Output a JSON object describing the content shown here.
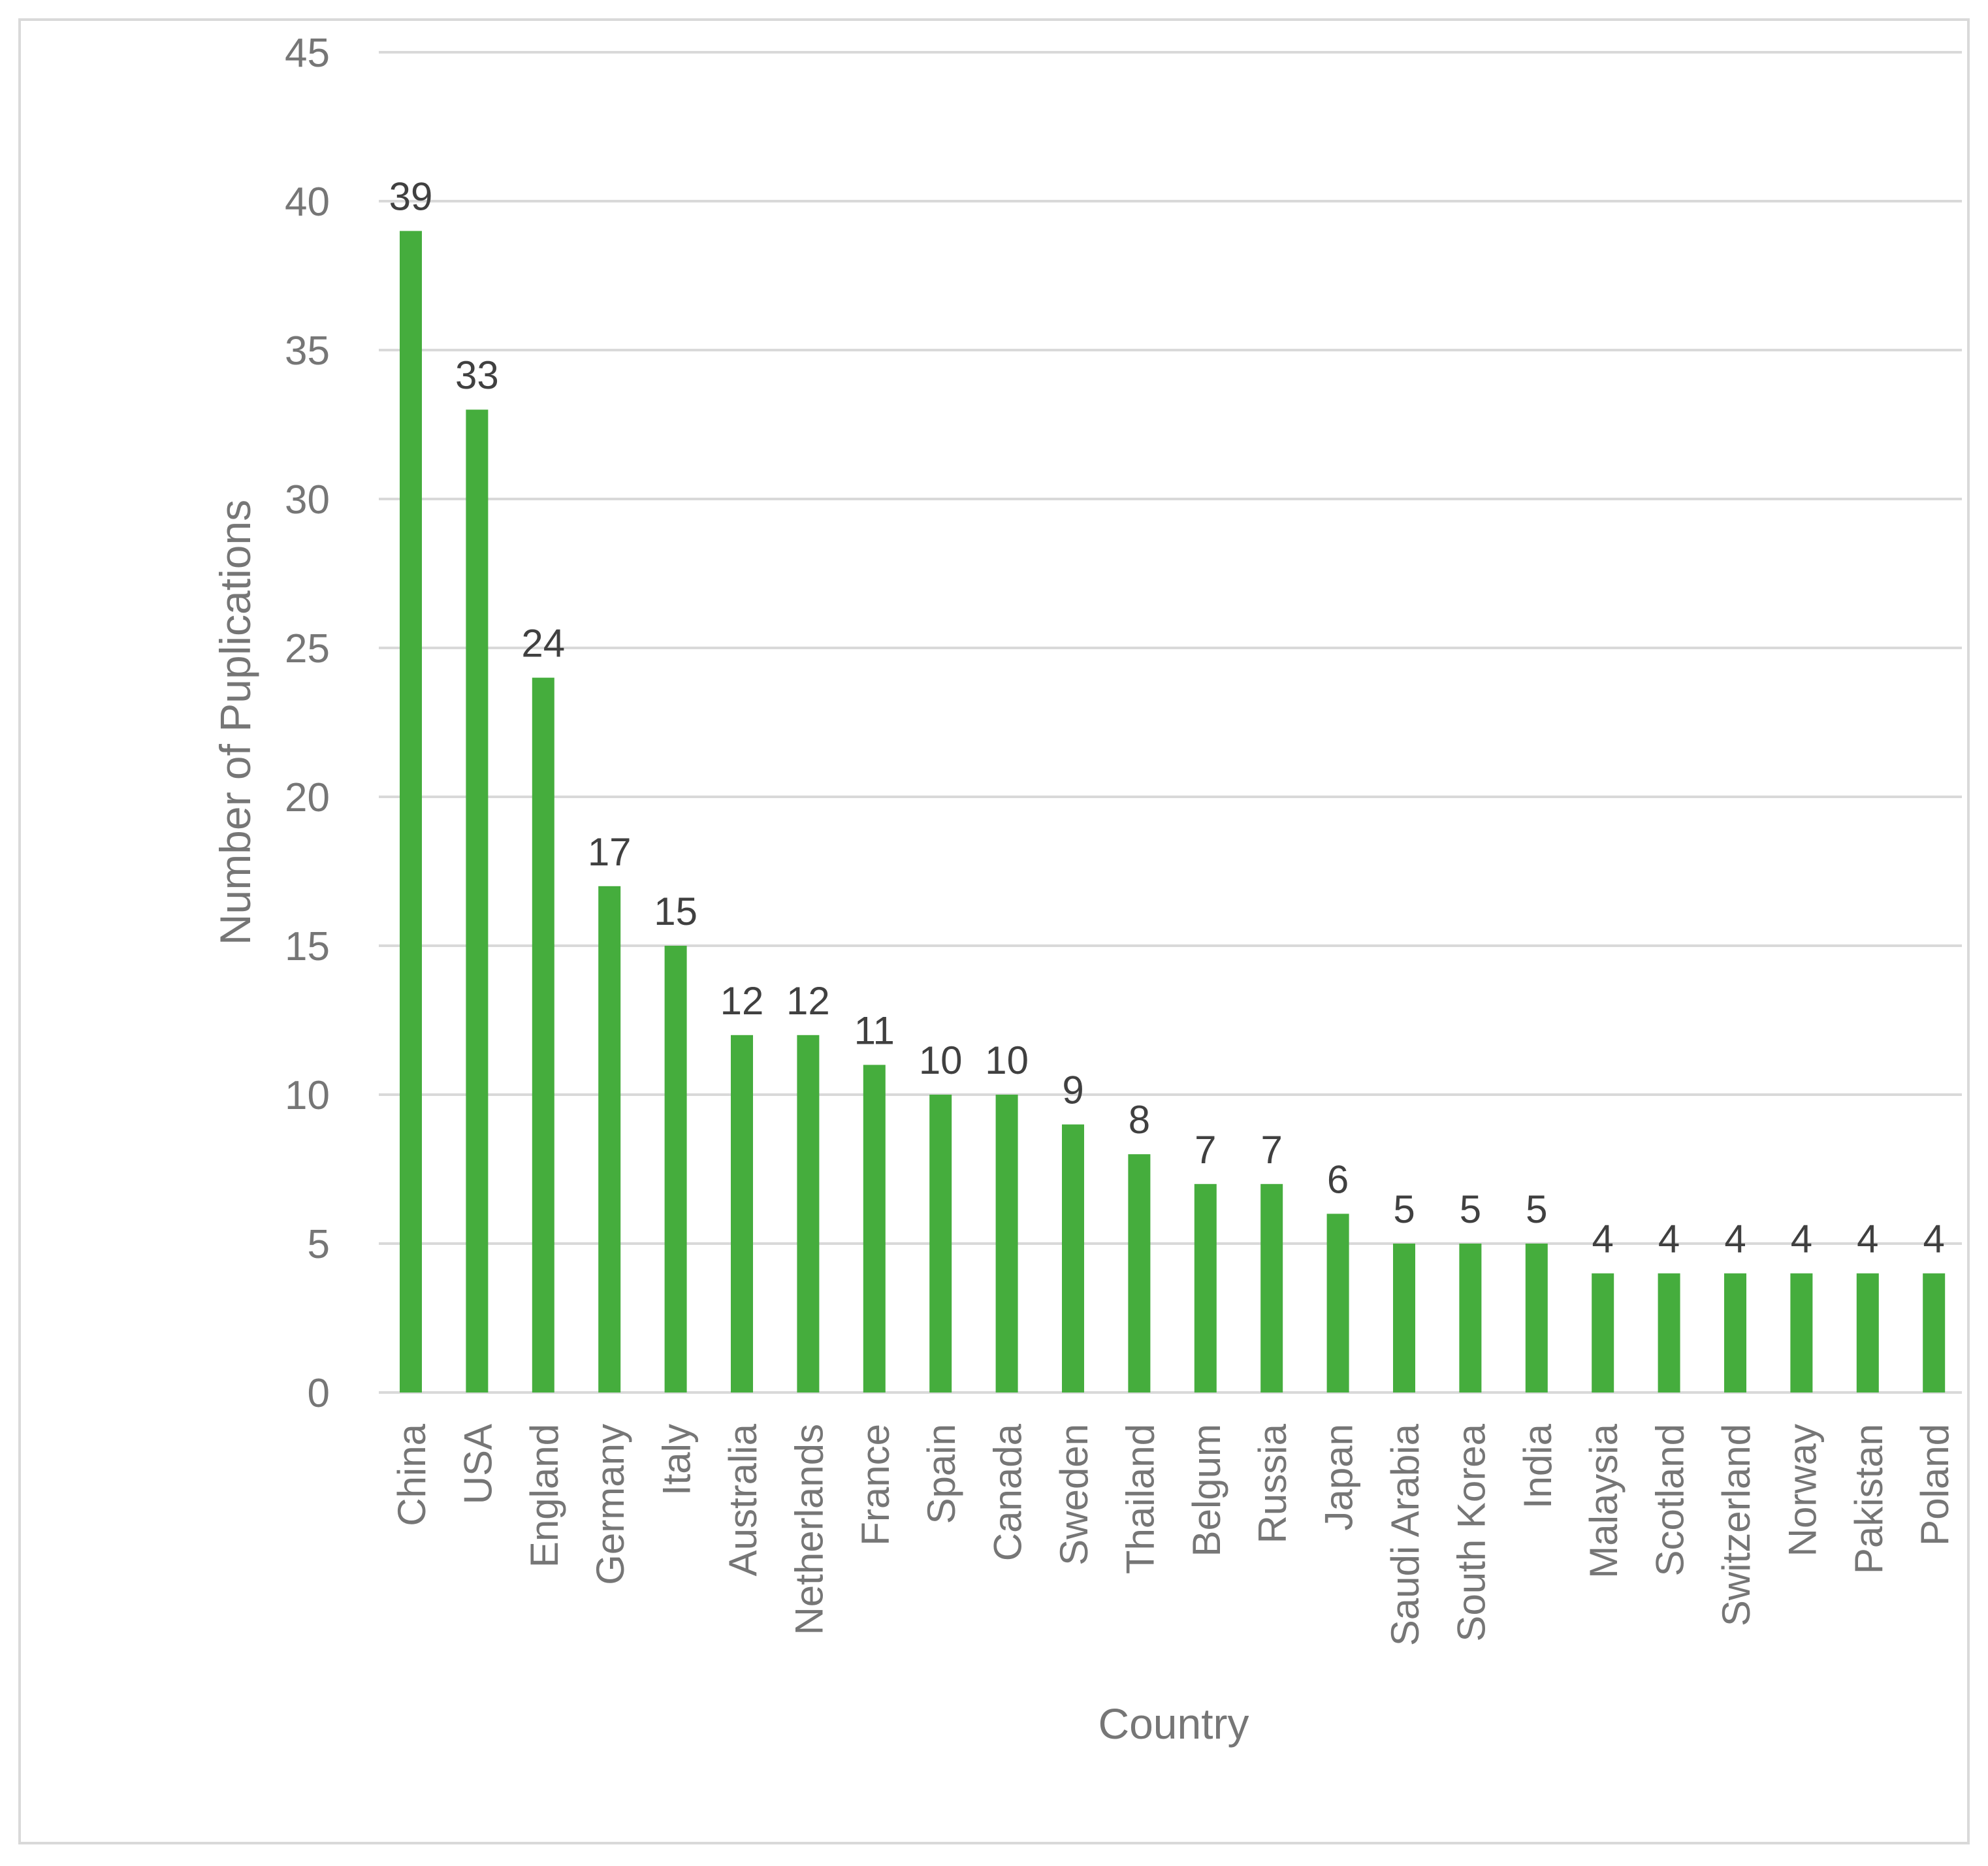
{
  "chart_data": {
    "type": "bar",
    "title": "",
    "xlabel": "Country",
    "ylabel": "Number of Puplications",
    "ylim": [
      0,
      45
    ],
    "yticks": [
      0,
      5,
      10,
      15,
      20,
      25,
      30,
      35,
      40,
      45
    ],
    "grid": true,
    "legend": "none",
    "categories": [
      "China",
      "USA",
      "England",
      "Germany",
      "Italy",
      "Australia",
      "Netherlands",
      "France",
      "Spain",
      "Canada",
      "Sweden",
      "Thailand",
      "Belgum",
      "Russia",
      "Japan",
      "Saudi Arabia",
      "South Korea",
      "India",
      "Malaysia",
      "Scotland",
      "Switzerland",
      "Norway",
      "Pakistan",
      "Poland"
    ],
    "values": [
      39,
      33,
      24,
      17,
      15,
      12,
      12,
      11,
      10,
      10,
      9,
      8,
      7,
      7,
      6,
      5,
      5,
      5,
      4,
      4,
      4,
      4,
      4,
      4
    ],
    "colors": {
      "bar": "#45ad3d",
      "grid": "#d9d9d9",
      "axis_text": "#767676",
      "label_text": "#404040",
      "frame": "#d9d9d9"
    }
  }
}
